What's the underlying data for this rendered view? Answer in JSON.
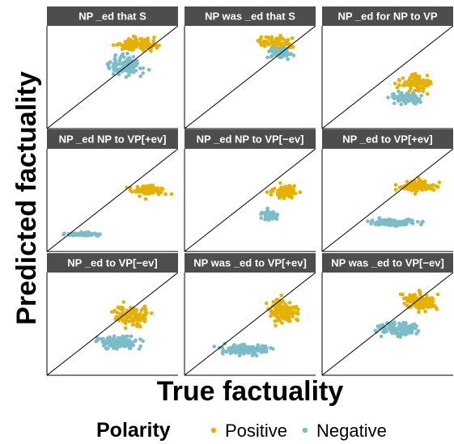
{
  "chart_data": {
    "type": "scatter",
    "xlabel": "True factuality",
    "ylabel": "Predicted factuality",
    "legend": {
      "title": "Polarity",
      "position": "bottom",
      "entries": [
        {
          "name": "Positive",
          "color": "#E5B000"
        },
        {
          "name": "Negative",
          "color": "#7BBCC8"
        }
      ]
    },
    "grid": false,
    "reference_line": "y = x",
    "xlim": [
      -3,
      3
    ],
    "ylim": [
      -3,
      3
    ],
    "panels": [
      {
        "title": "NP _ed that S",
        "positive": {
          "center": [
            1.1,
            1.9
          ],
          "spread": [
            1.3,
            0.45
          ],
          "n": 120
        },
        "negative": {
          "center": [
            0.6,
            0.7
          ],
          "spread": [
            1.0,
            0.7
          ],
          "n": 110
        }
      },
      {
        "title": "NP was _ed that S",
        "positive": {
          "center": [
            1.2,
            2.1
          ],
          "spread": [
            1.0,
            0.4
          ],
          "n": 70
        },
        "negative": {
          "center": [
            1.3,
            1.5
          ],
          "spread": [
            0.7,
            0.45
          ],
          "n": 80
        }
      },
      {
        "title": "NP _ed for NP to VP",
        "positive": {
          "center": [
            1.3,
            -0.3
          ],
          "spread": [
            0.9,
            0.55
          ],
          "n": 90
        },
        "negative": {
          "center": [
            0.9,
            -1.2
          ],
          "spread": [
            1.0,
            0.4
          ],
          "n": 90
        }
      },
      {
        "title": "NP _ed NP to VP[+ev]",
        "positive": {
          "center": [
            1.6,
            0.6
          ],
          "spread": [
            0.9,
            0.45
          ],
          "n": 75
        },
        "negative": {
          "center": [
            -1.3,
            -2.0
          ],
          "spread": [
            0.9,
            0.12
          ],
          "n": 90
        }
      },
      {
        "title": "NP _ed NP to VP[−ev]",
        "positive": {
          "center": [
            1.6,
            0.5
          ],
          "spread": [
            0.8,
            0.5
          ],
          "n": 90
        },
        "negative": {
          "center": [
            0.9,
            -0.9
          ],
          "spread": [
            0.45,
            0.35
          ],
          "n": 70
        }
      },
      {
        "title": "NP _ed to VP[+ev]",
        "positive": {
          "center": [
            1.4,
            0.8
          ],
          "spread": [
            1.0,
            0.4
          ],
          "n": 100
        },
        "negative": {
          "center": [
            0.3,
            -1.3
          ],
          "spread": [
            1.5,
            0.25
          ],
          "n": 130
        }
      },
      {
        "title": "NP _ed to VP[−ev]",
        "positive": {
          "center": [
            0.9,
            0.5
          ],
          "spread": [
            1.2,
            0.7
          ],
          "n": 95
        },
        "negative": {
          "center": [
            0.3,
            -1.1
          ],
          "spread": [
            1.1,
            0.45
          ],
          "n": 130
        }
      },
      {
        "title": "NP was _ed to VP[+ev]",
        "positive": {
          "center": [
            1.5,
            0.7
          ],
          "spread": [
            0.8,
            0.9
          ],
          "n": 110
        },
        "negative": {
          "center": [
            -0.1,
            -1.5
          ],
          "spread": [
            1.4,
            0.35
          ],
          "n": 160
        }
      },
      {
        "title": "NP was _ed to VP[−ev]",
        "positive": {
          "center": [
            1.5,
            1.3
          ],
          "spread": [
            0.9,
            0.7
          ],
          "n": 110
        },
        "negative": {
          "center": [
            0.5,
            -0.3
          ],
          "spread": [
            1.2,
            0.5
          ],
          "n": 120
        }
      }
    ]
  }
}
